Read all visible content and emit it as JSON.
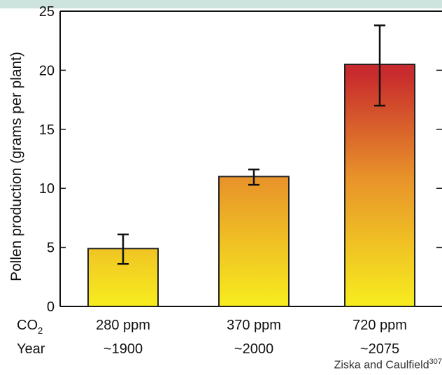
{
  "chart_data": {
    "type": "bar",
    "ylabel": "Pollen production (grams per plant)",
    "ylim": [
      0,
      25
    ],
    "yticks": [
      0,
      5,
      10,
      15,
      20,
      25
    ],
    "categories": [
      "280 ppm",
      "370 ppm",
      "720 ppm"
    ],
    "years": [
      "~1900",
      "~2000",
      "~2075"
    ],
    "values": [
      4.9,
      11.0,
      20.5
    ],
    "error_low": [
      3.6,
      10.3,
      17.0
    ],
    "error_high": [
      6.1,
      11.6,
      23.8
    ],
    "row_labels": {
      "co2_main": "CO",
      "co2_sub": "2",
      "year": "Year"
    },
    "gradient": {
      "top": "#c82b2d",
      "middle": "#e8932a",
      "bottom": "#f7ed1e"
    },
    "grid": false
  },
  "source": {
    "text": "Ziska and Caulfield",
    "ref": "307"
  },
  "colors": {
    "band": "#cde3dd"
  }
}
